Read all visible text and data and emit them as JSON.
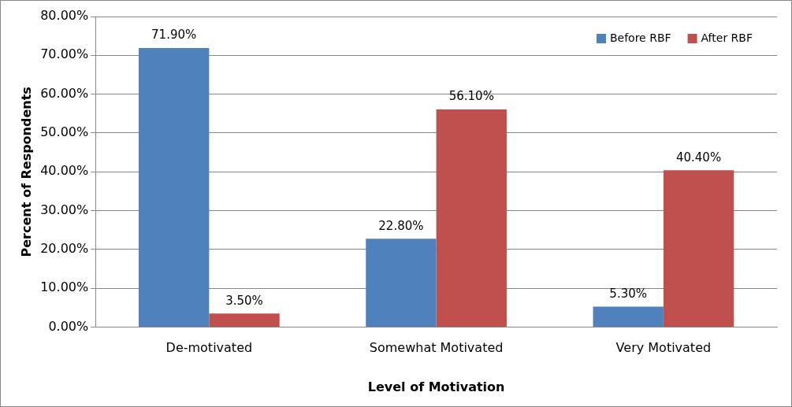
{
  "chart_data": {
    "type": "bar",
    "xlabel": "Level of Motivation",
    "ylabel": "Percent of Respondents",
    "categories": [
      "De-motivated",
      "Somewhat Motivated",
      "Very Motivated"
    ],
    "series": [
      {
        "name": "Before RBF",
        "color": "#4f81bd",
        "values": [
          71.9,
          22.8,
          5.3
        ],
        "value_labels": [
          "71.90%",
          "22.80%",
          "5.30%"
        ]
      },
      {
        "name": "After RBF",
        "color": "#c0504d",
        "values": [
          3.5,
          56.1,
          40.4
        ],
        "value_labels": [
          "3.50%",
          "56.10%",
          "40.40%"
        ]
      }
    ],
    "ylim": [
      0,
      80
    ],
    "yticks": [
      {
        "value": 0,
        "label": "0.00%"
      },
      {
        "value": 10,
        "label": "10.00%"
      },
      {
        "value": 20,
        "label": "20.00%"
      },
      {
        "value": 30,
        "label": "30.00%"
      },
      {
        "value": 40,
        "label": "40.00%"
      },
      {
        "value": 50,
        "label": "50.00%"
      },
      {
        "value": 60,
        "label": "60.00%"
      },
      {
        "value": 70,
        "label": "70.00%"
      },
      {
        "value": 80,
        "label": "80.00%"
      }
    ],
    "grid": "y",
    "legend": "top right"
  }
}
